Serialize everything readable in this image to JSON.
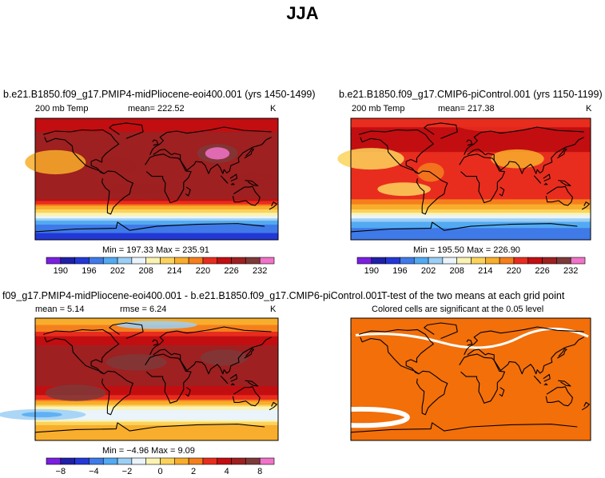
{
  "page_title": "JJA",
  "palette": {
    "temp": [
      "#7a1fe0",
      "#1f1fa8",
      "#2338d6",
      "#3f7ae8",
      "#52aaf2",
      "#9ccff5",
      "#eaf4fa",
      "#fbf3b3",
      "#fbd35c",
      "#f8ae2c",
      "#f57f1d",
      "#e82d1e",
      "#c20e11",
      "#9e2020",
      "#7e3a3a",
      "#f073c8"
    ],
    "ttest_fill": "#f26f0a",
    "ttest_blank": "#ffffff"
  },
  "panels": {
    "pliocene": {
      "title": "b.e21.B1850.f09_g17.PMIP4-midPliocene-eoi400.001 (yrs 1450-1499)",
      "variable": "200 mb Temp",
      "mean_text": "mean= 222.52",
      "units": "K",
      "minmax_text": "Min = 197.33 Max = 235.91"
    },
    "picontrol": {
      "title": "b.e21.B1850.f09_g17.CMIP6-piControl.001 (yrs 1150-1199)",
      "variable": "200 mb Temp",
      "mean_text": "mean= 217.38",
      "units": "K",
      "minmax_text": "Min = 195.50 Max = 226.90"
    },
    "difference": {
      "title": "f09_g17.PMIP4-midPliocene-eoi400.001 - b.e21.B1850.f09_g17.CMIP6-piControl.001",
      "mean_text": "mean =   5.14",
      "rmse_text": "rmse =   6.24",
      "units": "K",
      "minmax_text": "Min =  −4.96 Max =   9.09"
    },
    "ttest": {
      "title": "T-test of the two means at each grid point",
      "subtitle": "Colored cells are significant at the 0.05 level"
    }
  },
  "chart_data": [
    {
      "type": "heatmap",
      "panel": "pliocene",
      "title": "b.e21.B1850.f09_g17.PMIP4-midPliocene-eoi400.001 (yrs 1450-1499)",
      "variable": "200 mb Temp",
      "units": "K",
      "mean": 222.52,
      "min": 197.33,
      "max": 235.91,
      "colorbar_ticks": [
        "190",
        "196",
        "202",
        "208",
        "214",
        "220",
        "226",
        "232"
      ],
      "levels": [
        190,
        193,
        196,
        199,
        202,
        205,
        208,
        211,
        214,
        217,
        220,
        223,
        226,
        229,
        232
      ],
      "zonal_profile_lat_to_value": [
        [
          90,
          224
        ],
        [
          70,
          226
        ],
        [
          50,
          227
        ],
        [
          30,
          229
        ],
        [
          10,
          228
        ],
        [
          -10,
          228
        ],
        [
          -30,
          226
        ],
        [
          -45,
          214
        ],
        [
          -55,
          208
        ],
        [
          -65,
          200
        ],
        [
          -80,
          196
        ],
        [
          -90,
          195
        ]
      ]
    },
    {
      "type": "heatmap",
      "panel": "picontrol",
      "title": "b.e21.B1850.f09_g17.CMIP6-piControl.001 (yrs 1150-1199)",
      "variable": "200 mb Temp",
      "units": "K",
      "mean": 217.38,
      "min": 195.5,
      "max": 226.9,
      "colorbar_ticks": [
        "190",
        "196",
        "202",
        "208",
        "214",
        "220",
        "226",
        "232"
      ],
      "levels": [
        190,
        193,
        196,
        199,
        202,
        205,
        208,
        211,
        214,
        217,
        220,
        223,
        226,
        229,
        232
      ],
      "zonal_profile_lat_to_value": [
        [
          90,
          221
        ],
        [
          70,
          224
        ],
        [
          50,
          224
        ],
        [
          30,
          222
        ],
        [
          10,
          221
        ],
        [
          -10,
          221
        ],
        [
          -30,
          220
        ],
        [
          -45,
          214
        ],
        [
          -55,
          207
        ],
        [
          -65,
          201
        ],
        [
          -80,
          197
        ],
        [
          -90,
          196
        ]
      ]
    },
    {
      "type": "heatmap",
      "panel": "difference",
      "title": "f09_g17.PMIP4-midPliocene-eoi400.001 - b.e21.B1850.f09_g17.CMIP6-piControl.001",
      "units": "K",
      "mean": 5.14,
      "rmse": 6.24,
      "min": -4.96,
      "max": 9.09,
      "colorbar_ticks": [
        "−8",
        "−4",
        "−2",
        "0",
        "2",
        "4",
        "8"
      ],
      "zonal_profile_lat_to_value": [
        [
          90,
          1
        ],
        [
          70,
          3
        ],
        [
          50,
          6
        ],
        [
          30,
          8
        ],
        [
          10,
          7
        ],
        [
          -10,
          6
        ],
        [
          -30,
          3
        ],
        [
          -45,
          -1
        ],
        [
          -55,
          -2
        ],
        [
          -70,
          2
        ],
        [
          -90,
          2
        ]
      ]
    },
    {
      "type": "heatmap",
      "panel": "ttest",
      "title": "T-test of the two means at each grid point",
      "subtitle": "Colored cells are significant at the 0.05 level",
      "significance_level": 0.05
    }
  ]
}
